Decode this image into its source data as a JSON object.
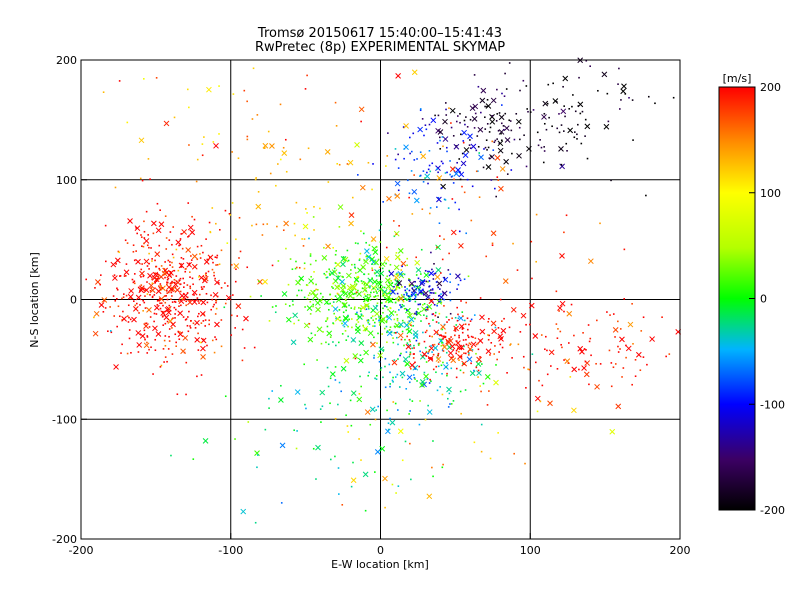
{
  "chart_data": {
    "type": "scatter",
    "title": "Tromsø 20150617 15:40:00–15:41:43",
    "subtitle": "RwPretec (8p) EXPERIMENTAL SKYMAP",
    "xlabel": "E-W location [km]",
    "ylabel": "N-S location [km]",
    "xlim": [
      -200,
      200
    ],
    "ylim": [
      -200,
      200
    ],
    "xticks": [
      "-200",
      "-100",
      "0",
      "100",
      "200"
    ],
    "yticks": [
      "-200",
      "-100",
      "0",
      "100",
      "200"
    ],
    "grid": true,
    "markers": [
      "dot",
      "cross"
    ],
    "colorbar": {
      "label": "[m/s]",
      "range": [
        -200,
        200
      ],
      "ticks": [
        "200",
        "100",
        "0",
        "-100",
        "-200"
      ],
      "colormap": "black-purple-blue-cyan-green-yellow-red"
    },
    "clusters": [
      {
        "x": -140,
        "y": 5,
        "velocity": 200,
        "count": 520,
        "sx": 22,
        "sy": 28
      },
      {
        "x": -20,
        "y": 5,
        "velocity": 20,
        "count": 300,
        "sx": 25,
        "sy": 22
      },
      {
        "x": 5,
        "y": 0,
        "velocity": 15,
        "count": 220,
        "sx": 18,
        "sy": 25
      },
      {
        "x": 30,
        "y": 8,
        "velocity": -110,
        "count": 110,
        "sx": 12,
        "sy": 10
      },
      {
        "x": 25,
        "y": -50,
        "velocity": -30,
        "count": 180,
        "sx": 22,
        "sy": 25
      },
      {
        "x": 50,
        "y": -35,
        "velocity": 200,
        "count": 170,
        "sx": 18,
        "sy": 14
      },
      {
        "x": 135,
        "y": -40,
        "velocity": 200,
        "count": 110,
        "sx": 35,
        "sy": 20
      },
      {
        "x": 70,
        "y": 140,
        "velocity": -175,
        "count": 120,
        "sx": 22,
        "sy": 18
      },
      {
        "x": 130,
        "y": 160,
        "velocity": -200,
        "count": 80,
        "sx": 25,
        "sy": 25
      },
      {
        "x": 40,
        "y": 110,
        "velocity": -90,
        "count": 100,
        "sx": 20,
        "sy": 25
      },
      {
        "x": -60,
        "y": 80,
        "velocity": 130,
        "count": 90,
        "sx": 45,
        "sy": 40
      },
      {
        "x": -40,
        "y": -100,
        "velocity": -20,
        "count": 90,
        "sx": 45,
        "sy": 45
      },
      {
        "x": 30,
        "y": -120,
        "velocity": 120,
        "count": 40,
        "sx": 50,
        "sy": 40
      },
      {
        "x": 60,
        "y": 40,
        "velocity": 180,
        "count": 80,
        "sx": 45,
        "sy": 45
      },
      {
        "x": -100,
        "y": 150,
        "velocity": 150,
        "count": 50,
        "sx": 55,
        "sy": 35
      }
    ]
  }
}
